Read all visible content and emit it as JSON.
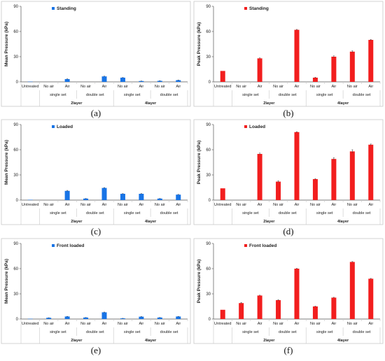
{
  "colors": {
    "blue": "#1874E6",
    "red": "#F21E1E",
    "axis": "#555555",
    "frame": "#c8c8c8"
  },
  "chart_data": [
    {
      "panel_label": "(a)",
      "type": "bar",
      "ylabel": "Mean Pressure (kPa)",
      "ylim": [
        0,
        90
      ],
      "yticks": [
        "0",
        "30",
        "60",
        "90"
      ],
      "legend": "Standing",
      "color": "blue",
      "categories": [
        "Untreated",
        "No air",
        "Air",
        "No air",
        "Air",
        "No air",
        "Air",
        "No air",
        "Air"
      ],
      "sublabels": [
        "single set",
        "double set",
        "single set",
        "double set"
      ],
      "grouplabels": [
        "2layer",
        "4layer"
      ],
      "values": [
        0.3,
        0,
        3.3,
        0,
        6.5,
        5,
        1,
        1.2,
        2
      ],
      "errors": [
        0,
        0,
        0.3,
        0,
        0.3,
        0.3,
        0.1,
        0.2,
        0.2
      ]
    },
    {
      "panel_label": "(b)",
      "type": "bar",
      "ylabel": "Peak Pressure (kPa)",
      "ylim": [
        0,
        90
      ],
      "yticks": [
        "0",
        "30",
        "60",
        "90"
      ],
      "legend": "Standing",
      "color": "red",
      "categories": [
        "Untreated",
        "No air",
        "Air",
        "No air",
        "Air",
        "No air",
        "Air",
        "No air",
        "Air"
      ],
      "sublabels": [
        "single set",
        "double set",
        "single set",
        "double set"
      ],
      "grouplabels": [
        "2layer",
        "4layer"
      ],
      "values": [
        13,
        0,
        28,
        0,
        62,
        5,
        30,
        36,
        50
      ],
      "errors": [
        0,
        0,
        0.5,
        0,
        0.5,
        0.5,
        1,
        1,
        0.5
      ]
    },
    {
      "panel_label": "(c)",
      "type": "bar",
      "ylabel": "Mean Pressure (kPa)",
      "ylim": [
        0,
        90
      ],
      "yticks": [
        "0",
        "30",
        "60",
        "90"
      ],
      "legend": "Loaded",
      "color": "blue",
      "categories": [
        "Untreated",
        "No air",
        "Air",
        "No air",
        "Air",
        "No air",
        "Air",
        "No air",
        "Air"
      ],
      "sublabels": [
        "single set",
        "double set",
        "single set",
        "double set"
      ],
      "grouplabels": [
        "2layer",
        "4layer"
      ],
      "values": [
        0.4,
        0,
        11,
        1.8,
        14.5,
        7.5,
        7.5,
        1.8,
        6.5
      ],
      "errors": [
        0,
        0,
        0.6,
        0.2,
        0.4,
        0.3,
        0.3,
        0.2,
        0.3
      ]
    },
    {
      "panel_label": "(d)",
      "type": "bar",
      "ylabel": "Peak Pressure (kPa)",
      "ylim": [
        0,
        90
      ],
      "yticks": [
        "0",
        "30",
        "60",
        "90"
      ],
      "legend": "Loaded",
      "color": "red",
      "categories": [
        "Untreated",
        "No air",
        "Air",
        "No air",
        "Air",
        "No air",
        "Air",
        "No air",
        "Air"
      ],
      "sublabels": [
        "single set",
        "double set",
        "single set",
        "double set"
      ],
      "grouplabels": [
        "2layer",
        "4layer"
      ],
      "values": [
        14,
        0,
        55,
        22,
        81,
        25,
        49,
        58,
        66
      ],
      "errors": [
        0,
        0,
        1,
        1,
        0.5,
        0.5,
        1.5,
        2,
        0.8
      ]
    },
    {
      "panel_label": "(e)",
      "type": "bar",
      "ylabel": "Mean Pressure (kPa)",
      "ylim": [
        0,
        90
      ],
      "yticks": [
        "0",
        "30",
        "60",
        "90"
      ],
      "legend": "Front loaded",
      "color": "blue",
      "categories": [
        "Untreated",
        "No air",
        "Air",
        "No air",
        "Air",
        "No air",
        "Air",
        "No air",
        "Air"
      ],
      "sublabels": [
        "single set",
        "double set",
        "single set",
        "double set"
      ],
      "grouplabels": [
        "2layer",
        "4layer"
      ],
      "values": [
        0.3,
        1.5,
        3,
        1.8,
        8,
        0.8,
        2.8,
        1.8,
        3
      ],
      "errors": [
        0,
        0.1,
        0.2,
        0.1,
        0.3,
        0.1,
        0.2,
        0.1,
        0.2
      ]
    },
    {
      "panel_label": "(f)",
      "type": "bar",
      "ylabel": "Peak Pressure (kPa)",
      "ylim": [
        0,
        90
      ],
      "yticks": [
        "0",
        "30",
        "60",
        "90"
      ],
      "legend": "Front loaded",
      "color": "red",
      "categories": [
        "Untreated",
        "No air",
        "Air",
        "No air",
        "Air",
        "No air",
        "Air",
        "No air",
        "Air"
      ],
      "sublabels": [
        "single set",
        "double set",
        "single set",
        "double set"
      ],
      "grouplabels": [
        "2layer",
        "4layer"
      ],
      "values": [
        11,
        19,
        28,
        22.5,
        60,
        15,
        25.5,
        68,
        48
      ],
      "errors": [
        0,
        0.8,
        0.4,
        0.5,
        0.4,
        0.4,
        0.4,
        0.5,
        0.4
      ]
    }
  ]
}
